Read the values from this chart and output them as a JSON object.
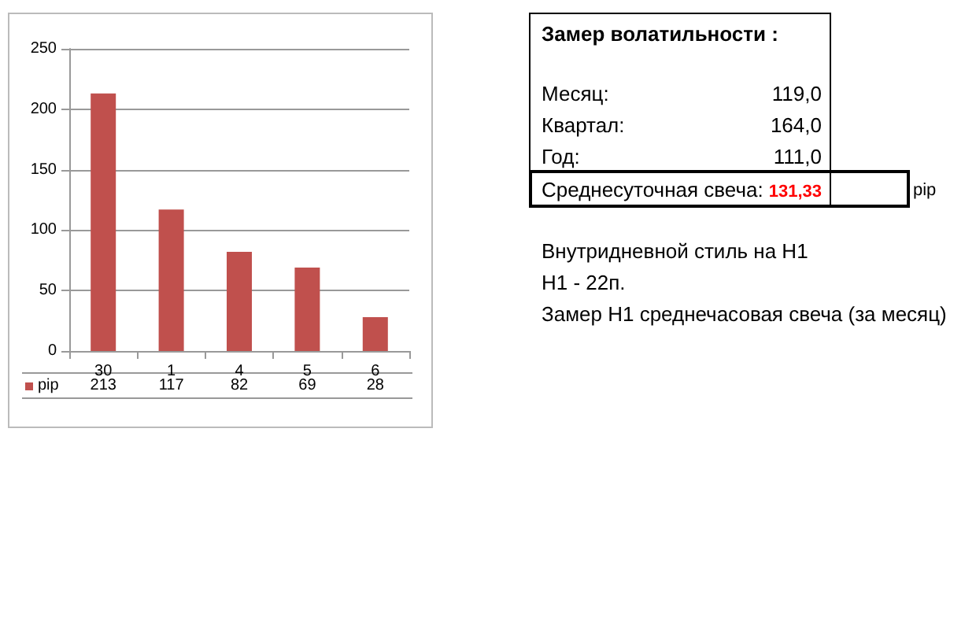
{
  "chart_data": {
    "type": "bar",
    "categories": [
      "30",
      "1",
      "4",
      "5",
      "6"
    ],
    "series": [
      {
        "name": "pip",
        "color": "#c0504d",
        "values": [
          213,
          117,
          82,
          69,
          28
        ]
      }
    ],
    "ylim": [
      0,
      250
    ],
    "yticks": [
      0,
      50,
      100,
      150,
      200,
      250
    ],
    "grid": "y",
    "data_labels": true,
    "annotations": [
      "Замер  волатильности  :",
      "Месяц:",
      "119,0",
      "Квартал:",
      "164,0",
      "Год:",
      "111,0",
      "Среднесуточная свеча:",
      "131,33",
      "pip",
      "Внутридневной стиль на H1",
      "H1 - 22п.",
      "Замер H1 среднечасовая свеча (за месяц)"
    ]
  }
}
